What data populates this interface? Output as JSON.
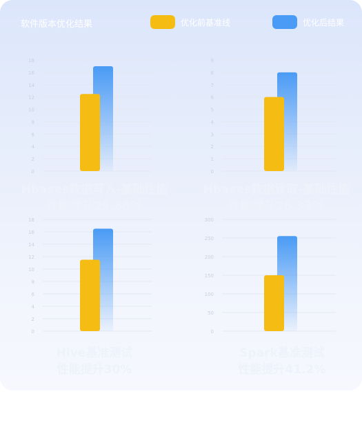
{
  "legend": {
    "title": "软件版本优化结果",
    "items": [
      {
        "label": "优化前基准线",
        "color": "#f5bd13"
      },
      {
        "label": "优化后结果",
        "color": "#4a9bf5"
      }
    ]
  },
  "captions": [
    {
      "line1": "Hbases数据写入-基础性能",
      "line2": "性能提升25.66%"
    },
    {
      "line1": "Hbases数据读取-基础性能",
      "line2": "性能提升26.33%"
    },
    {
      "line1": "Hive基准测试",
      "line2": "性能提升30%"
    },
    {
      "line1": "Spark基准测试",
      "line2": "性能提升41.2%"
    }
  ],
  "chart_data": [
    {
      "type": "bar",
      "categories": [
        "优化前基准线",
        "优化后结果"
      ],
      "values": [
        12.5,
        17.0
      ],
      "ylim": [
        0,
        18
      ],
      "yticks": [
        0,
        2,
        4,
        6,
        8,
        10,
        12,
        14,
        16,
        18
      ],
      "grid": true
    },
    {
      "type": "bar",
      "categories": [
        "优化前基准线",
        "优化后结果"
      ],
      "values": [
        6.0,
        8.0
      ],
      "ylim": [
        0,
        9
      ],
      "yticks": [
        0,
        1,
        2,
        3,
        4,
        5,
        6,
        7,
        8,
        9
      ],
      "grid": true
    },
    {
      "type": "bar",
      "categories": [
        "优化前基准线",
        "优化后结果"
      ],
      "values": [
        11.5,
        16.5
      ],
      "ylim": [
        0,
        18
      ],
      "yticks": [
        0,
        2,
        4,
        6,
        8,
        10,
        12,
        14,
        16,
        18
      ],
      "grid": true
    },
    {
      "type": "bar",
      "categories": [
        "优化前基准线",
        "优化后结果"
      ],
      "values": [
        150,
        255
      ],
      "ylim": [
        0,
        300
      ],
      "yticks": [
        0,
        50,
        100,
        150,
        200,
        250,
        300
      ],
      "grid": true
    }
  ]
}
